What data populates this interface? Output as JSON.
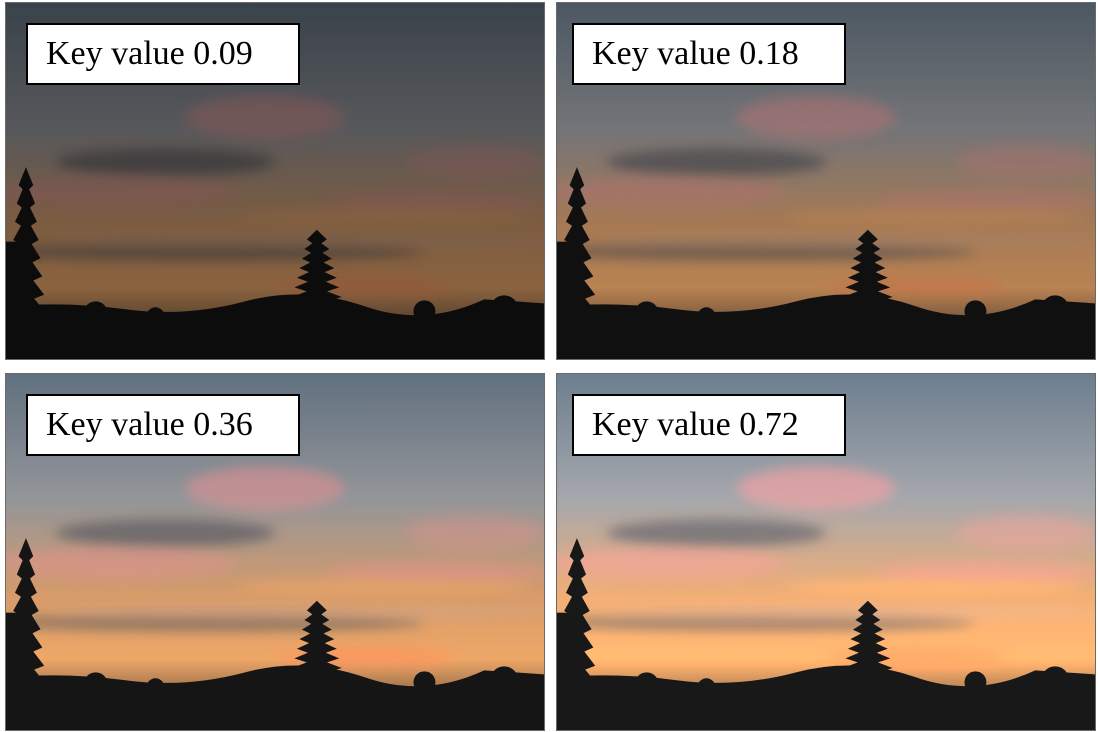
{
  "panels": [
    {
      "label": "Key value 0.09",
      "key_value": 0.09,
      "brightness": 0.62
    },
    {
      "label": "Key value 0.18",
      "key_value": 0.18,
      "brightness": 0.82
    },
    {
      "label": "Key value 0.36",
      "key_value": 0.36,
      "brightness": 1.05
    },
    {
      "label": "Key value 0.72",
      "key_value": 0.72,
      "brightness": 1.18
    }
  ],
  "scene": {
    "subject": "sunset-sky-with-tree-silhouettes",
    "colors": {
      "sky_top": "#5d6b78",
      "sky_mid": "#8c8e92",
      "sky_glow": "#c99468",
      "horizon": "#e0a066",
      "cloud_pink": "#d98a8a",
      "cloud_dark": "#4a4e58",
      "silhouette": "#151414"
    }
  }
}
